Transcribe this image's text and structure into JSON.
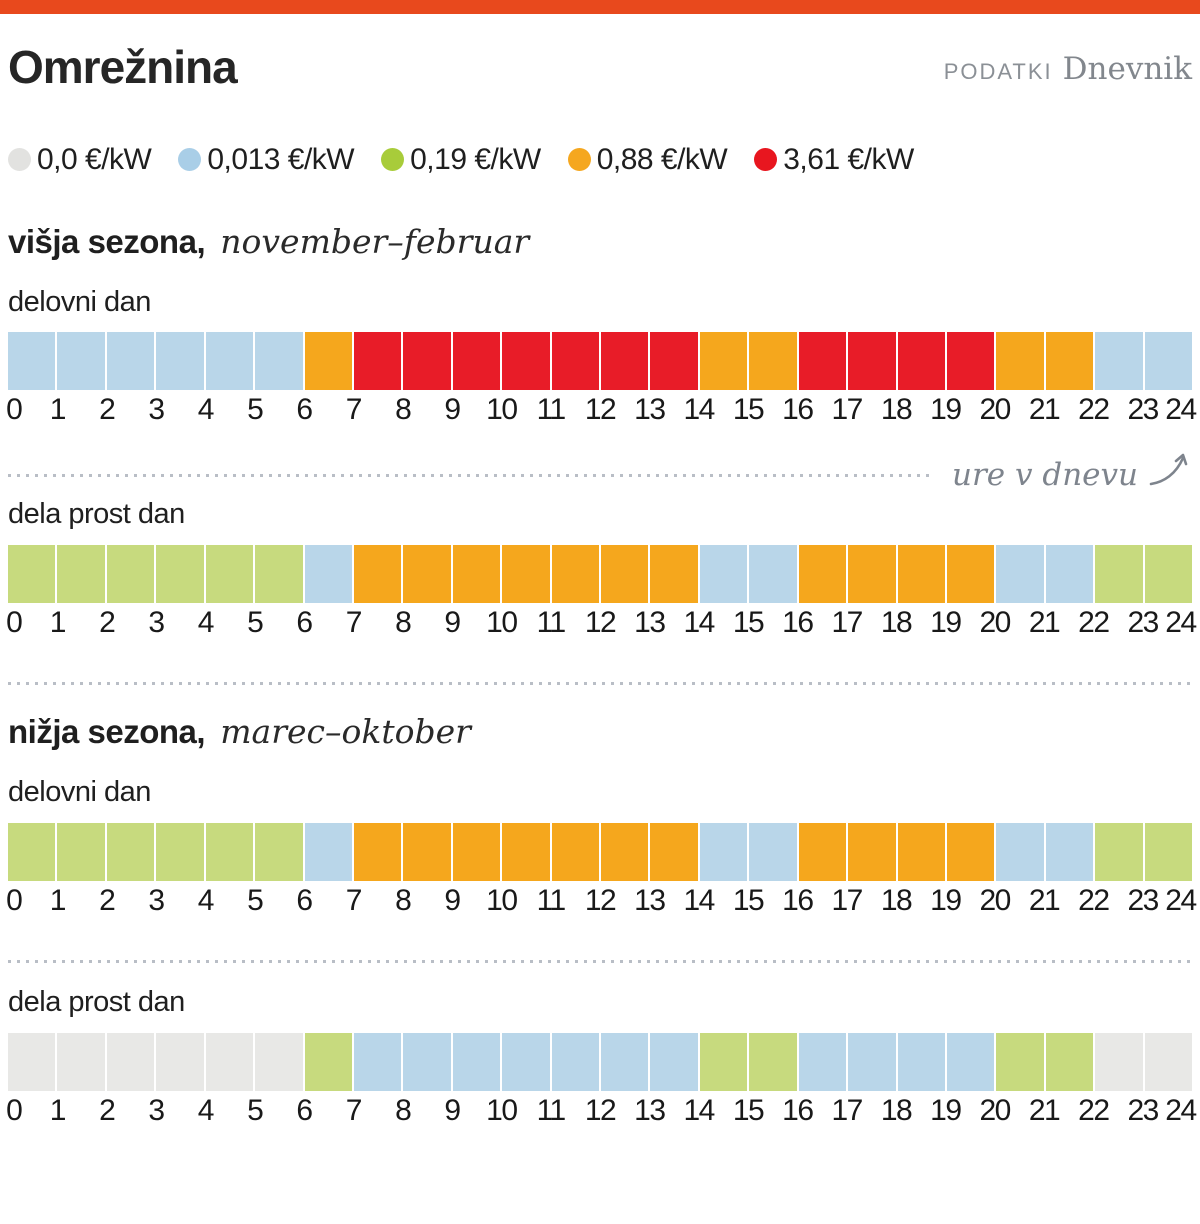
{
  "header": {
    "title": "Omrežnina",
    "credit_label": "PODATKI",
    "brand": "Dnevnik"
  },
  "colors": {
    "top_bar": "#e8491d",
    "divider": "#b9bec6",
    "annotation_text": "#7e848d",
    "cells": {
      "gray": "#e8e8e6",
      "blue": "#b9d6e9",
      "green": "#c7da7e",
      "orange": "#f5a71d",
      "red": "#e81c28"
    },
    "legend_dots": {
      "gray": "#e2e2e0",
      "blue": "#a9cee7",
      "green": "#a8cc3a",
      "orange": "#f5a71f",
      "red": "#e8161f"
    }
  },
  "legend": [
    {
      "key": "gray",
      "label": "0,0 €/kW"
    },
    {
      "key": "blue",
      "label": "0,013 €/kW"
    },
    {
      "key": "green",
      "label": "0,19 €/kW"
    },
    {
      "key": "orange",
      "label": "0,88 €/kW"
    },
    {
      "key": "red",
      "label": "3,61 €/kW"
    }
  ],
  "axis": {
    "hours": [
      0,
      1,
      2,
      3,
      4,
      5,
      6,
      7,
      8,
      9,
      10,
      11,
      12,
      13,
      14,
      15,
      16,
      17,
      18,
      19,
      20,
      21,
      22,
      23,
      24
    ],
    "annotation": "ure v dnevu"
  },
  "sections": [
    {
      "title_bold": "višja sezona,",
      "title_italic": "november–februar",
      "rows": [
        {
          "label": "delovni dan",
          "cells": [
            "blue",
            "blue",
            "blue",
            "blue",
            "blue",
            "blue",
            "orange",
            "red",
            "red",
            "red",
            "red",
            "red",
            "red",
            "red",
            "orange",
            "orange",
            "red",
            "red",
            "red",
            "red",
            "orange",
            "orange",
            "blue",
            "blue"
          ]
        },
        {
          "label": "dela prost dan",
          "cells": [
            "green",
            "green",
            "green",
            "green",
            "green",
            "green",
            "blue",
            "orange",
            "orange",
            "orange",
            "orange",
            "orange",
            "orange",
            "orange",
            "blue",
            "blue",
            "orange",
            "orange",
            "orange",
            "orange",
            "blue",
            "blue",
            "green",
            "green"
          ]
        }
      ]
    },
    {
      "title_bold": "nižja sezona,",
      "title_italic": "marec–oktober",
      "rows": [
        {
          "label": "delovni dan",
          "cells": [
            "green",
            "green",
            "green",
            "green",
            "green",
            "green",
            "blue",
            "orange",
            "orange",
            "orange",
            "orange",
            "orange",
            "orange",
            "orange",
            "blue",
            "blue",
            "orange",
            "orange",
            "orange",
            "orange",
            "blue",
            "blue",
            "green",
            "green"
          ]
        },
        {
          "label": "dela prost dan",
          "cells": [
            "gray",
            "gray",
            "gray",
            "gray",
            "gray",
            "gray",
            "green",
            "blue",
            "blue",
            "blue",
            "blue",
            "blue",
            "blue",
            "blue",
            "green",
            "green",
            "blue",
            "blue",
            "blue",
            "blue",
            "green",
            "green",
            "gray",
            "gray"
          ]
        }
      ]
    }
  ],
  "chart_data": {
    "type": "heatmap",
    "title": "Omrežnina",
    "unit": "€/kW",
    "xlabel": "ure v dnevu",
    "x_hours": [
      0,
      1,
      2,
      3,
      4,
      5,
      6,
      7,
      8,
      9,
      10,
      11,
      12,
      13,
      14,
      15,
      16,
      17,
      18,
      19,
      20,
      21,
      22,
      23
    ],
    "levels": [
      0.0,
      0.013,
      0.19,
      0.88,
      3.61
    ],
    "level_colors": [
      "#e8e8e6",
      "#b9d6e9",
      "#c7da7e",
      "#f5a71d",
      "#e81c28"
    ],
    "series": [
      {
        "name": "višja sezona (november–februar), delovni dan",
        "values": [
          0.013,
          0.013,
          0.013,
          0.013,
          0.013,
          0.013,
          0.88,
          3.61,
          3.61,
          3.61,
          3.61,
          3.61,
          3.61,
          3.61,
          0.88,
          0.88,
          3.61,
          3.61,
          3.61,
          3.61,
          0.88,
          0.88,
          0.013,
          0.013
        ]
      },
      {
        "name": "višja sezona (november–februar), dela prost dan",
        "values": [
          0.19,
          0.19,
          0.19,
          0.19,
          0.19,
          0.19,
          0.013,
          0.88,
          0.88,
          0.88,
          0.88,
          0.88,
          0.88,
          0.88,
          0.013,
          0.013,
          0.88,
          0.88,
          0.88,
          0.88,
          0.013,
          0.013,
          0.19,
          0.19
        ]
      },
      {
        "name": "nižja sezona (marec–oktober), delovni dan",
        "values": [
          0.19,
          0.19,
          0.19,
          0.19,
          0.19,
          0.19,
          0.013,
          0.88,
          0.88,
          0.88,
          0.88,
          0.88,
          0.88,
          0.88,
          0.013,
          0.013,
          0.88,
          0.88,
          0.88,
          0.88,
          0.013,
          0.013,
          0.19,
          0.19
        ]
      },
      {
        "name": "nižja sezona (marec–oktober), dela prost dan",
        "values": [
          0.0,
          0.0,
          0.0,
          0.0,
          0.0,
          0.0,
          0.19,
          0.013,
          0.013,
          0.013,
          0.013,
          0.013,
          0.013,
          0.013,
          0.19,
          0.19,
          0.013,
          0.013,
          0.013,
          0.013,
          0.19,
          0.19,
          0.0,
          0.0
        ]
      }
    ]
  }
}
